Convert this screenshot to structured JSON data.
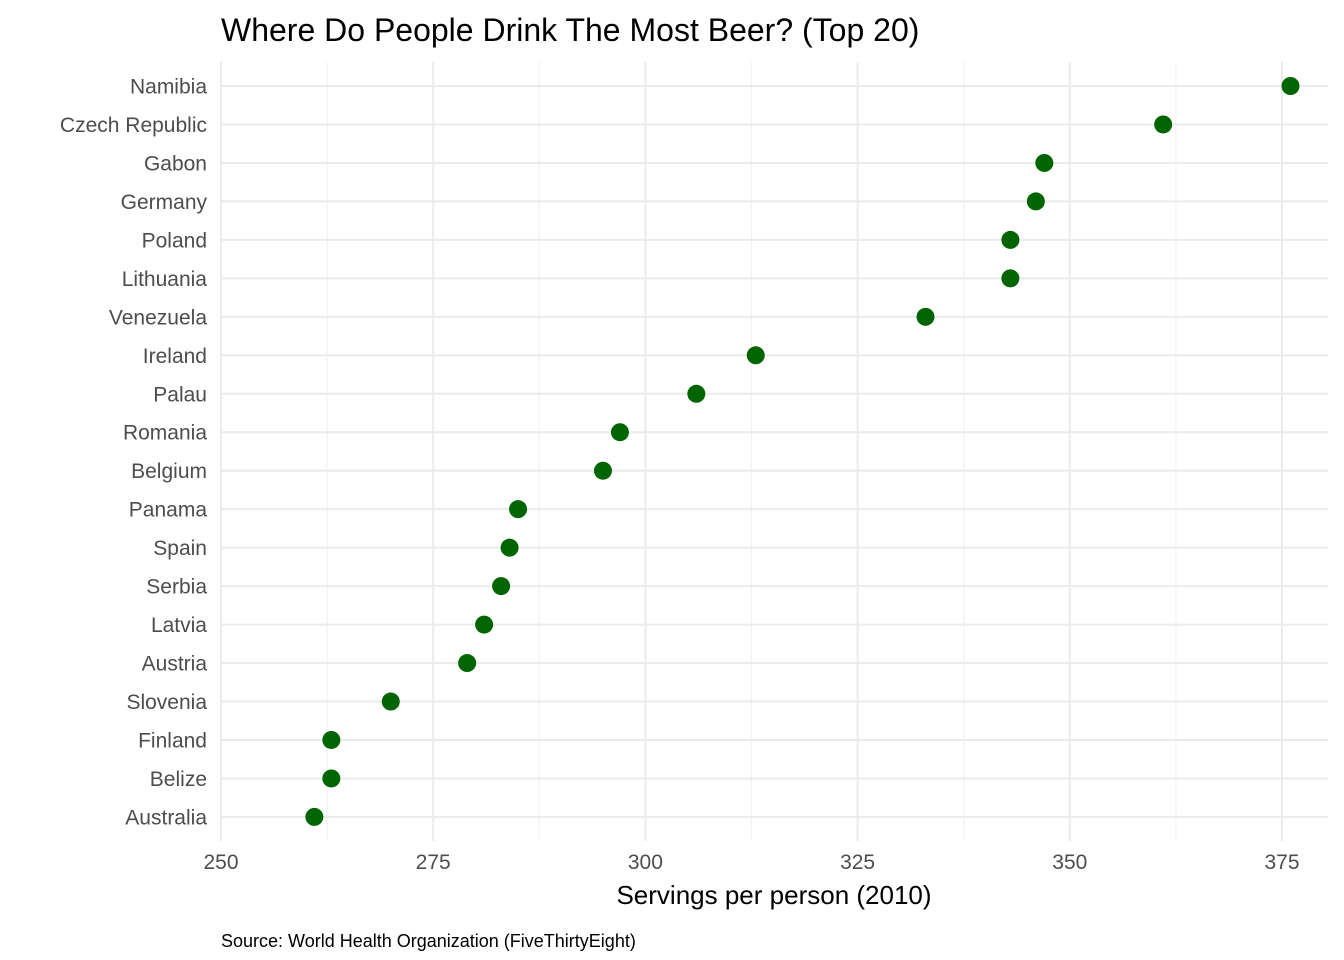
{
  "chart_data": {
    "type": "scatter",
    "title": "Where Do People Drink The Most Beer? (Top 20)",
    "xlabel": "Servings per person (2010)",
    "ylabel": "",
    "caption": "Source: World Health Organization (FiveThirtyEight)",
    "xlim": [
      250,
      378
    ],
    "x_ticks": [
      250,
      275,
      300,
      325,
      350,
      375
    ],
    "grid": true,
    "point_color": "#006400",
    "categories": [
      "Namibia",
      "Czech Republic",
      "Gabon",
      "Germany",
      "Poland",
      "Lithuania",
      "Venezuela",
      "Ireland",
      "Palau",
      "Romania",
      "Belgium",
      "Panama",
      "Spain",
      "Serbia",
      "Latvia",
      "Austria",
      "Slovenia",
      "Finland",
      "Belize",
      "Australia"
    ],
    "values": [
      376,
      361,
      347,
      346,
      343,
      343,
      333,
      313,
      306,
      297,
      295,
      285,
      284,
      283,
      281,
      279,
      270,
      263,
      263,
      261
    ]
  }
}
